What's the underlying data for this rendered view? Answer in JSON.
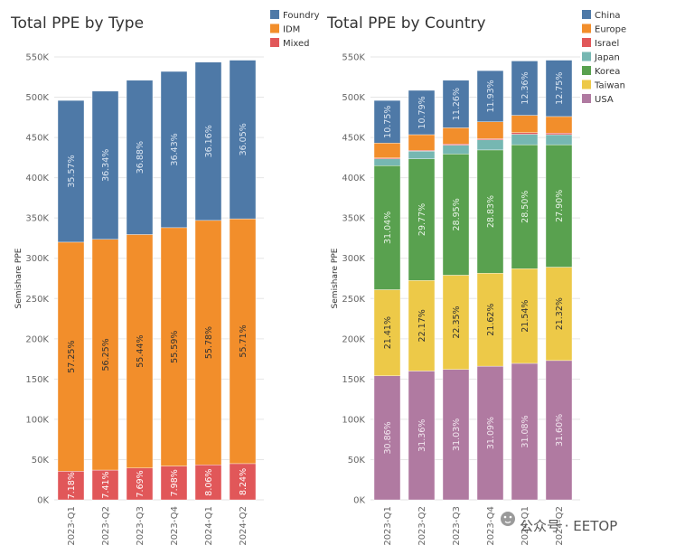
{
  "chart_data": [
    {
      "type": "bar",
      "stacked": true,
      "title": "Total PPE by Type",
      "ylabel": "Semishare PPE",
      "xlabel": "",
      "ylim": [
        0,
        550000
      ],
      "yticks": [
        "0K",
        "50K",
        "100K",
        "150K",
        "200K",
        "250K",
        "300K",
        "350K",
        "400K",
        "450K",
        "500K",
        "550K"
      ],
      "categories": [
        "2023-Q1",
        "2023-Q2",
        "2023-Q3",
        "2023-Q4",
        "2024-Q1",
        "2024-Q2"
      ],
      "legend": [
        "Foundry",
        "IDM",
        "Mixed"
      ],
      "legend_position": "top-right",
      "series": [
        {
          "name": "Mixed",
          "color": "#e15759",
          "label_color": "#ffffff",
          "values": [
            35500,
            37000,
            39500,
            42000,
            43500,
            45000
          ],
          "labels": [
            "7.18%",
            "7.41%",
            "7.69%",
            "7.98%",
            "8.06%",
            "8.24%"
          ]
        },
        {
          "name": "IDM",
          "color": "#f28e2b",
          "label_color": "#333333",
          "values": [
            284500,
            286500,
            290000,
            296000,
            303500,
            304000
          ],
          "labels": [
            "57.25%",
            "56.25%",
            "55.44%",
            "55.59%",
            "55.78%",
            "55.71%"
          ]
        },
        {
          "name": "Foundry",
          "color": "#4e79a7",
          "label_color": "#dce6f2",
          "values": [
            176000,
            184000,
            191500,
            194000,
            196500,
            197000
          ],
          "labels": [
            "35.57%",
            "36.34%",
            "36.88%",
            "36.43%",
            "36.16%",
            "36.05%"
          ]
        }
      ]
    },
    {
      "type": "bar",
      "stacked": true,
      "title": "Total PPE by Country",
      "ylabel": "Semishare PPE",
      "xlabel": "",
      "ylim": [
        0,
        550000
      ],
      "yticks": [
        "0K",
        "50K",
        "100K",
        "150K",
        "200K",
        "250K",
        "300K",
        "350K",
        "400K",
        "450K",
        "500K",
        "550K"
      ],
      "categories": [
        "2023-Q1",
        "2023-Q2",
        "2023-Q3",
        "2023-Q4",
        "2024-Q1",
        "2024-Q2"
      ],
      "legend": [
        "China",
        "Europe",
        "Israel",
        "Japan",
        "Korea",
        "Taiwan",
        "USA"
      ],
      "legend_position": "top-right",
      "series": [
        {
          "name": "USA",
          "color": "#b07aa1",
          "label_color": "#f3e8f0",
          "values": [
            154000,
            160000,
            162000,
            166000,
            169500,
            173000
          ],
          "labels": [
            "30.86%",
            "31.36%",
            "31.03%",
            "31.09%",
            "31.08%",
            "31.60%"
          ]
        },
        {
          "name": "Taiwan",
          "color": "#edc948",
          "label_color": "#333333",
          "values": [
            107000,
            112500,
            117000,
            115500,
            117500,
            116000
          ],
          "labels": [
            "21.41%",
            "22.17%",
            "22.35%",
            "21.62%",
            "21.54%",
            "21.32%"
          ]
        },
        {
          "name": "Korea",
          "color": "#59a14f",
          "label_color": "#e8f3e6",
          "values": [
            154000,
            151000,
            150500,
            153000,
            154000,
            152000
          ],
          "labels": [
            "31.04%",
            "29.77%",
            "28.95%",
            "28.83%",
            "28.50%",
            "27.90%"
          ]
        },
        {
          "name": "Japan",
          "color": "#76b7b2",
          "label_color": "#ffffff",
          "values": [
            8500,
            9500,
            11000,
            12500,
            13000,
            12500
          ],
          "labels": [
            "",
            "",
            "",
            "",
            "",
            ""
          ]
        },
        {
          "name": "Israel",
          "color": "#e15759",
          "label_color": "#ffffff",
          "values": [
            1000,
            1000,
            1500,
            1500,
            2000,
            2000
          ],
          "labels": [
            "",
            "",
            "",
            "",
            "",
            ""
          ]
        },
        {
          "name": "Europe",
          "color": "#f28e2b",
          "label_color": "#ffffff",
          "values": [
            18500,
            19500,
            20000,
            21000,
            21500,
            20500
          ],
          "labels": [
            "",
            "",
            "",
            "",
            "",
            ""
          ]
        },
        {
          "name": "China",
          "color": "#4e79a7",
          "label_color": "#dce6f2",
          "values": [
            53000,
            55000,
            59000,
            63500,
            67500,
            70000
          ],
          "labels": [
            "10.75%",
            "10.79%",
            "11.26%",
            "11.93%",
            "12.36%",
            "12.75%"
          ]
        }
      ]
    }
  ],
  "watermark": {
    "text": "公众号 · EETOP"
  }
}
